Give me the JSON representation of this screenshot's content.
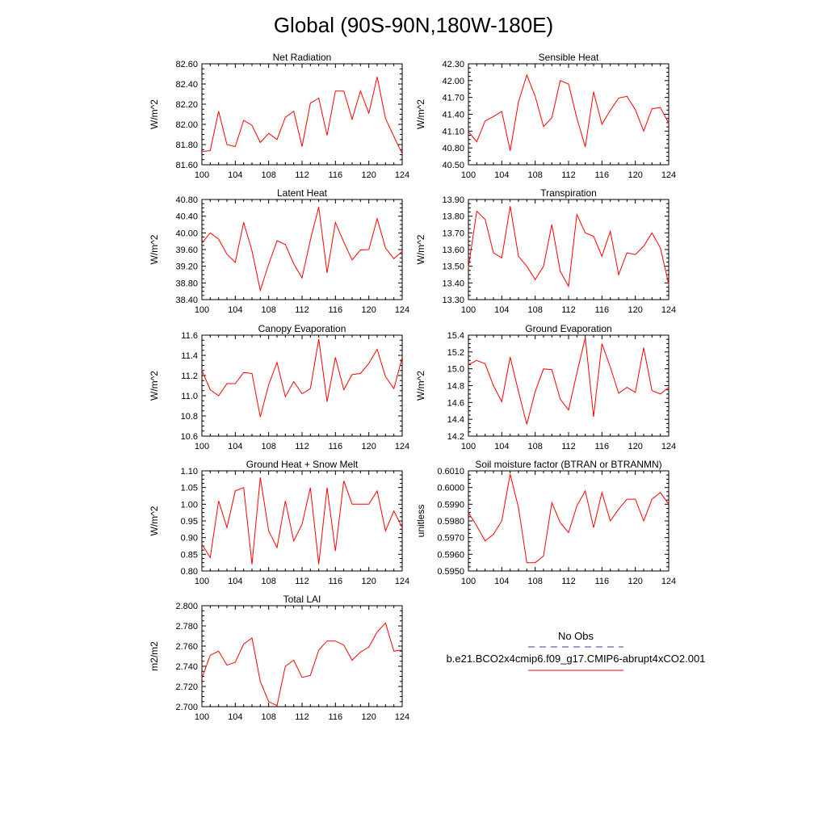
{
  "figure_title": "Global (90S-90N,180W-180E)",
  "colors": {
    "series": "#ff0000",
    "obs": "#3a3aa0",
    "axes": "#000000"
  },
  "legend": {
    "obs_label": "No Obs",
    "case_label": "b.e21.BCO2x4cmip6.f09_g17.CMIP6-abrupt4xCO2.001"
  },
  "chart_data": [
    {
      "id": "net-radiation",
      "type": "line",
      "title": "Net Radiation",
      "ylabel": "W/m^2",
      "xlim": [
        100,
        124
      ],
      "xticks": [
        100,
        104,
        108,
        112,
        116,
        120,
        124
      ],
      "ylim": [
        81.6,
        82.6
      ],
      "yticks": [
        "81.60",
        "81.80",
        "82.00",
        "82.20",
        "82.40",
        "82.60"
      ],
      "x": [
        100,
        101,
        102,
        103,
        104,
        105,
        106,
        107,
        108,
        109,
        110,
        111,
        112,
        113,
        114,
        115,
        116,
        117,
        118,
        119,
        120,
        121,
        122,
        123,
        124
      ],
      "values": [
        81.73,
        81.74,
        82.13,
        81.8,
        81.78,
        82.04,
        81.99,
        81.82,
        81.91,
        81.85,
        82.07,
        82.13,
        81.78,
        82.21,
        82.26,
        81.89,
        82.33,
        82.33,
        82.05,
        82.33,
        82.11,
        82.47,
        82.06,
        81.88,
        81.71
      ]
    },
    {
      "id": "sensible-heat",
      "type": "line",
      "title": "Sensible Heat",
      "ylabel": "W/m^2",
      "xlim": [
        100,
        124
      ],
      "xticks": [
        100,
        104,
        108,
        112,
        116,
        120,
        124
      ],
      "ylim": [
        40.5,
        42.3
      ],
      "yticks": [
        "40.50",
        "40.80",
        "41.10",
        "41.40",
        "41.70",
        "42.00",
        "42.30"
      ],
      "x": [
        100,
        101,
        102,
        103,
        104,
        105,
        106,
        107,
        108,
        109,
        110,
        111,
        112,
        113,
        114,
        115,
        116,
        117,
        118,
        119,
        120,
        121,
        122,
        123,
        124
      ],
      "values": [
        41.09,
        40.91,
        41.28,
        41.36,
        41.45,
        40.75,
        41.62,
        42.1,
        41.72,
        41.18,
        41.34,
        42.0,
        41.94,
        41.33,
        40.82,
        41.8,
        41.22,
        41.47,
        41.69,
        41.72,
        41.48,
        41.1,
        41.5,
        41.52,
        41.24
      ]
    },
    {
      "id": "latent-heat",
      "type": "line",
      "title": "Latent Heat",
      "ylabel": "W/m^2",
      "xlim": [
        100,
        124
      ],
      "xticks": [
        100,
        104,
        108,
        112,
        116,
        120,
        124
      ],
      "ylim": [
        38.4,
        40.8
      ],
      "yticks": [
        "38.40",
        "38.80",
        "39.20",
        "39.60",
        "40.00",
        "40.40",
        "40.80"
      ],
      "x": [
        100,
        101,
        102,
        103,
        104,
        105,
        106,
        107,
        108,
        109,
        110,
        111,
        112,
        113,
        114,
        115,
        116,
        117,
        118,
        119,
        120,
        121,
        122,
        123,
        124
      ],
      "values": [
        39.75,
        40.0,
        39.85,
        39.49,
        39.29,
        40.25,
        39.57,
        38.62,
        39.25,
        39.81,
        39.72,
        39.26,
        38.92,
        39.83,
        40.62,
        39.04,
        40.25,
        39.78,
        39.35,
        39.59,
        39.6,
        40.34,
        39.64,
        39.38,
        39.56
      ]
    },
    {
      "id": "transpiration",
      "type": "line",
      "title": "Transpiration",
      "ylabel": "W/m^2",
      "xlim": [
        100,
        124
      ],
      "xticks": [
        100,
        104,
        108,
        112,
        116,
        120,
        124
      ],
      "ylim": [
        13.3,
        13.9
      ],
      "yticks": [
        "13.30",
        "13.40",
        "13.50",
        "13.60",
        "13.70",
        "13.80",
        "13.90"
      ],
      "x": [
        100,
        101,
        102,
        103,
        104,
        105,
        106,
        107,
        108,
        109,
        110,
        111,
        112,
        113,
        114,
        115,
        116,
        117,
        118,
        119,
        120,
        121,
        122,
        123,
        124
      ],
      "values": [
        13.49,
        13.83,
        13.78,
        13.58,
        13.55,
        13.86,
        13.56,
        13.5,
        13.42,
        13.5,
        13.75,
        13.47,
        13.38,
        13.81,
        13.7,
        13.68,
        13.56,
        13.71,
        13.45,
        13.58,
        13.57,
        13.62,
        13.7,
        13.61,
        13.39
      ]
    },
    {
      "id": "canopy-evaporation",
      "type": "line",
      "title": "Canopy Evaporation",
      "ylabel": "W/m^2",
      "xlim": [
        100,
        124
      ],
      "xticks": [
        100,
        104,
        108,
        112,
        116,
        120,
        124
      ],
      "ylim": [
        10.6,
        11.6
      ],
      "yticks": [
        "10.6",
        "10.8",
        "11.0",
        "11.2",
        "11.4",
        "11.6"
      ],
      "x": [
        100,
        101,
        102,
        103,
        104,
        105,
        106,
        107,
        108,
        109,
        110,
        111,
        112,
        113,
        114,
        115,
        116,
        117,
        118,
        119,
        120,
        121,
        122,
        123,
        124
      ],
      "values": [
        11.25,
        11.06,
        11.0,
        11.12,
        11.12,
        11.23,
        11.22,
        10.79,
        11.11,
        11.33,
        10.99,
        11.14,
        11.02,
        11.07,
        11.56,
        10.94,
        11.38,
        11.06,
        11.21,
        11.22,
        11.32,
        11.46,
        11.19,
        11.07,
        11.38
      ]
    },
    {
      "id": "ground-evaporation",
      "type": "line",
      "title": "Ground Evaporation",
      "ylabel": "W/m^2",
      "xlim": [
        100,
        124
      ],
      "xticks": [
        100,
        104,
        108,
        112,
        116,
        120,
        124
      ],
      "ylim": [
        14.2,
        15.4
      ],
      "yticks": [
        "14.2",
        "14.4",
        "14.6",
        "14.8",
        "15.0",
        "15.2",
        "15.4"
      ],
      "x": [
        100,
        101,
        102,
        103,
        104,
        105,
        106,
        107,
        108,
        109,
        110,
        111,
        112,
        113,
        114,
        115,
        116,
        117,
        118,
        119,
        120,
        121,
        122,
        123,
        124
      ],
      "values": [
        15.05,
        15.1,
        15.06,
        14.8,
        14.61,
        15.14,
        14.73,
        14.34,
        14.73,
        15.0,
        14.99,
        14.64,
        14.51,
        14.95,
        15.37,
        14.43,
        15.3,
        15.02,
        14.71,
        14.78,
        14.72,
        15.25,
        14.74,
        14.7,
        14.78
      ]
    },
    {
      "id": "ground-heat-snow-melt",
      "type": "line",
      "title": "Ground Heat + Snow Melt",
      "ylabel": "W/m^2",
      "xlim": [
        100,
        124
      ],
      "xticks": [
        100,
        104,
        108,
        112,
        116,
        120,
        124
      ],
      "ylim": [
        0.8,
        1.1
      ],
      "yticks": [
        "0.80",
        "0.85",
        "0.90",
        "0.95",
        "1.00",
        "1.05",
        "1.10"
      ],
      "x": [
        100,
        101,
        102,
        103,
        104,
        105,
        106,
        107,
        108,
        109,
        110,
        111,
        112,
        113,
        114,
        115,
        116,
        117,
        118,
        119,
        120,
        121,
        122,
        123,
        124
      ],
      "values": [
        0.88,
        0.84,
        1.01,
        0.93,
        1.04,
        1.05,
        0.82,
        1.08,
        0.92,
        0.87,
        1.01,
        0.89,
        0.94,
        1.05,
        0.82,
        1.05,
        0.86,
        1.07,
        1.0,
        1.0,
        1.0,
        1.04,
        0.92,
        0.98,
        0.93
      ]
    },
    {
      "id": "soil-moisture-factor",
      "type": "line",
      "title": "Soil moisture factor (BTRAN or BTRANMN)",
      "ylabel": "unitless",
      "xlim": [
        100,
        124
      ],
      "xticks": [
        100,
        104,
        108,
        112,
        116,
        120,
        124
      ],
      "ylim": [
        0.595,
        0.601
      ],
      "yticks": [
        "0.5950",
        "0.5960",
        "0.5970",
        "0.5980",
        "0.5990",
        "0.6000",
        "0.6010"
      ],
      "x": [
        100,
        101,
        102,
        103,
        104,
        105,
        106,
        107,
        108,
        109,
        110,
        111,
        112,
        113,
        114,
        115,
        116,
        117,
        118,
        119,
        120,
        121,
        122,
        123,
        124
      ],
      "values": [
        0.5985,
        0.5977,
        0.5968,
        0.5972,
        0.598,
        0.6008,
        0.5988,
        0.5955,
        0.5955,
        0.5959,
        0.5991,
        0.5979,
        0.5973,
        0.5989,
        0.5998,
        0.5976,
        0.5997,
        0.598,
        0.5987,
        0.5993,
        0.5993,
        0.598,
        0.5993,
        0.5997,
        0.599
      ]
    },
    {
      "id": "total-lai",
      "type": "line",
      "title": "Total LAI",
      "ylabel": "m2/m2",
      "xlim": [
        100,
        124
      ],
      "xticks": [
        100,
        104,
        108,
        112,
        116,
        120,
        124
      ],
      "ylim": [
        2.7,
        2.8
      ],
      "yticks": [
        "2.700",
        "2.720",
        "2.740",
        "2.760",
        "2.780",
        "2.800"
      ],
      "x": [
        100,
        101,
        102,
        103,
        104,
        105,
        106,
        107,
        108,
        109,
        110,
        111,
        112,
        113,
        114,
        115,
        116,
        117,
        118,
        119,
        120,
        121,
        122,
        123,
        124
      ],
      "values": [
        2.728,
        2.751,
        2.755,
        2.741,
        2.744,
        2.762,
        2.768,
        2.725,
        2.705,
        2.701,
        2.74,
        2.746,
        2.729,
        2.731,
        2.756,
        2.765,
        2.765,
        2.761,
        2.746,
        2.754,
        2.759,
        2.774,
        2.783,
        2.755,
        2.756
      ]
    }
  ]
}
